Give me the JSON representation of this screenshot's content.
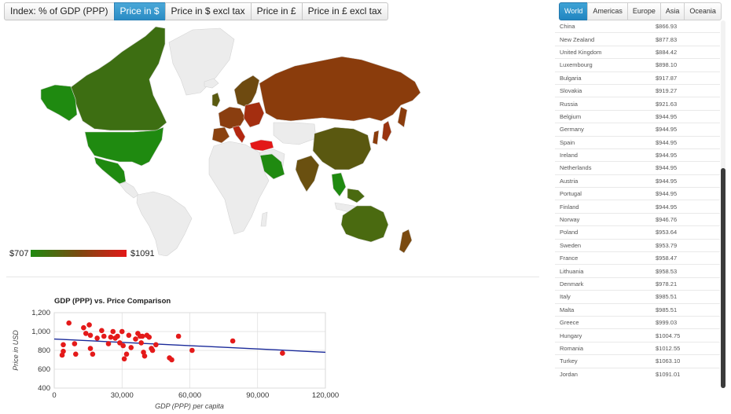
{
  "index_buttons": [
    {
      "label": "Index: % of GDP (PPP)",
      "active": false
    },
    {
      "label": "Price in $",
      "active": true
    },
    {
      "label": "Price in $ excl tax",
      "active": false
    },
    {
      "label": "Price in £",
      "active": false
    },
    {
      "label": "Price in £ excl tax",
      "active": false
    }
  ],
  "legend": {
    "min_label": "$707",
    "max_label": "$1091",
    "low_color": "#1f8a10",
    "high_color": "#e31818"
  },
  "region_tabs": [
    {
      "label": "World",
      "active": true
    },
    {
      "label": "Americas",
      "active": false
    },
    {
      "label": "Europe",
      "active": false
    },
    {
      "label": "Asia",
      "active": false
    },
    {
      "label": "Oceania",
      "active": false
    }
  ],
  "prices": [
    {
      "country": "China",
      "price": "$866.93"
    },
    {
      "country": "New Zealand",
      "price": "$877.83"
    },
    {
      "country": "United Kingdom",
      "price": "$884.42"
    },
    {
      "country": "Luxembourg",
      "price": "$898.10"
    },
    {
      "country": "Bulgaria",
      "price": "$917.87"
    },
    {
      "country": "Slovakia",
      "price": "$919.27"
    },
    {
      "country": "Russia",
      "price": "$921.63"
    },
    {
      "country": "Belgium",
      "price": "$944.95"
    },
    {
      "country": "Germany",
      "price": "$944.95"
    },
    {
      "country": "Spain",
      "price": "$944.95"
    },
    {
      "country": "Ireland",
      "price": "$944.95"
    },
    {
      "country": "Netherlands",
      "price": "$944.95"
    },
    {
      "country": "Austria",
      "price": "$944.95"
    },
    {
      "country": "Portugal",
      "price": "$944.95"
    },
    {
      "country": "Finland",
      "price": "$944.95"
    },
    {
      "country": "Norway",
      "price": "$946.76"
    },
    {
      "country": "Poland",
      "price": "$953.64"
    },
    {
      "country": "Sweden",
      "price": "$953.79"
    },
    {
      "country": "France",
      "price": "$958.47"
    },
    {
      "country": "Lithuania",
      "price": "$958.53"
    },
    {
      "country": "Denmark",
      "price": "$978.21"
    },
    {
      "country": "Italy",
      "price": "$985.51"
    },
    {
      "country": "Malta",
      "price": "$985.51"
    },
    {
      "country": "Greece",
      "price": "$999.03"
    },
    {
      "country": "Hungary",
      "price": "$1004.75"
    },
    {
      "country": "Romania",
      "price": "$1012.55"
    },
    {
      "country": "Turkey",
      "price": "$1063.10"
    },
    {
      "country": "Jordan",
      "price": "$1091.01"
    }
  ],
  "chart_data": {
    "type": "scatter",
    "title": "GDP (PPP) vs. Price Comparison",
    "xlabel": "GDP (PPP) per capita",
    "ylabel": "Price in USD",
    "xlim": [
      0,
      120000
    ],
    "ylim": [
      400,
      1200
    ],
    "xticks": [
      0,
      30000,
      60000,
      90000,
      120000
    ],
    "xtick_labels": [
      "0",
      "30,000",
      "60,000",
      "90,000",
      "120,000"
    ],
    "yticks": [
      400,
      600,
      800,
      1000,
      1200
    ],
    "ytick_labels": [
      "400",
      "600",
      "800",
      "1,000",
      "1,200"
    ],
    "grid": true,
    "point_color": "#e41a1a",
    "trend_color": "#1a2a9a",
    "trendline": [
      [
        0,
        920
      ],
      [
        120000,
        780
      ]
    ],
    "points": [
      [
        4000,
        860
      ],
      [
        4000,
        790
      ],
      [
        3500,
        750
      ],
      [
        6500,
        1090
      ],
      [
        9000,
        870
      ],
      [
        9500,
        760
      ],
      [
        13000,
        1040
      ],
      [
        14000,
        980
      ],
      [
        15500,
        1070
      ],
      [
        16000,
        960
      ],
      [
        16000,
        820
      ],
      [
        17000,
        760
      ],
      [
        19000,
        930
      ],
      [
        21000,
        1010
      ],
      [
        22000,
        950
      ],
      [
        24000,
        870
      ],
      [
        25000,
        940
      ],
      [
        26000,
        1000
      ],
      [
        27000,
        930
      ],
      [
        28000,
        950
      ],
      [
        29000,
        880
      ],
      [
        30000,
        1000
      ],
      [
        30500,
        850
      ],
      [
        31000,
        710
      ],
      [
        32000,
        760
      ],
      [
        33000,
        960
      ],
      [
        34000,
        830
      ],
      [
        36000,
        920
      ],
      [
        37000,
        980
      ],
      [
        38000,
        950
      ],
      [
        38500,
        880
      ],
      [
        39000,
        950
      ],
      [
        39500,
        780
      ],
      [
        40000,
        740
      ],
      [
        41000,
        960
      ],
      [
        42000,
        940
      ],
      [
        43000,
        820
      ],
      [
        43500,
        800
      ],
      [
        45000,
        860
      ],
      [
        51000,
        720
      ],
      [
        52000,
        700
      ],
      [
        55000,
        950
      ],
      [
        61000,
        800
      ],
      [
        79000,
        900
      ],
      [
        101000,
        770
      ]
    ]
  }
}
